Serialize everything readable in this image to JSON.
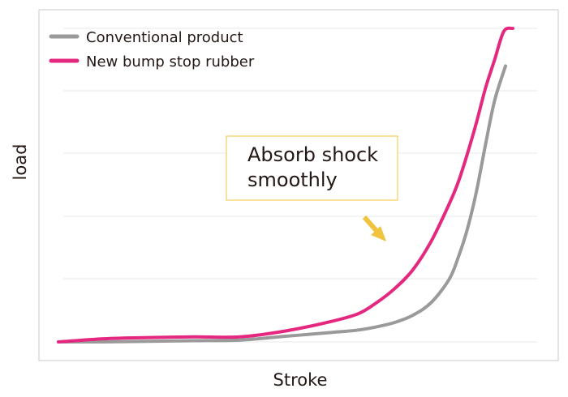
{
  "chart_data": {
    "type": "line",
    "title": "",
    "xlabel": "Stroke",
    "ylabel": "load",
    "xlim": [
      0,
      100
    ],
    "ylim": [
      0,
      100
    ],
    "grid": true,
    "legend_position": "top-left",
    "series": [
      {
        "name": "Conventional product",
        "color": "#9a9a9a",
        "x": [
          0,
          10,
          20,
          30,
          40,
          50,
          60,
          66,
          70,
          74,
          78,
          82,
          86,
          88,
          90,
          92,
          94,
          96,
          98.4
        ],
        "y": [
          0,
          0,
          0.2,
          0.4,
          0.6,
          1.8,
          3.0,
          3.8,
          4.8,
          6.2,
          8.5,
          12.5,
          20,
          27,
          36,
          48,
          63,
          77,
          88
        ]
      },
      {
        "name": "New bump stop rubber",
        "color": "#e5287f",
        "x": [
          0,
          10,
          20,
          30,
          40,
          50,
          60,
          66,
          70,
          74,
          78,
          82,
          86,
          88,
          90,
          92,
          94,
          96,
          98,
          100
        ],
        "y": [
          0,
          1.0,
          1.4,
          1.6,
          1.6,
          3.5,
          6.5,
          9.0,
          12.5,
          17,
          23,
          32,
          44,
          51,
          60,
          70,
          81,
          90,
          99,
          100
        ]
      }
    ],
    "annotations": [
      {
        "text_line1": "Absorb shock",
        "text_line2": "smoothly"
      }
    ]
  },
  "colors": {
    "frame": "#c8c8c8",
    "grid": "#e8e8e8",
    "annotation_border": "#f0c43e",
    "arrow": "#f0c43e"
  }
}
